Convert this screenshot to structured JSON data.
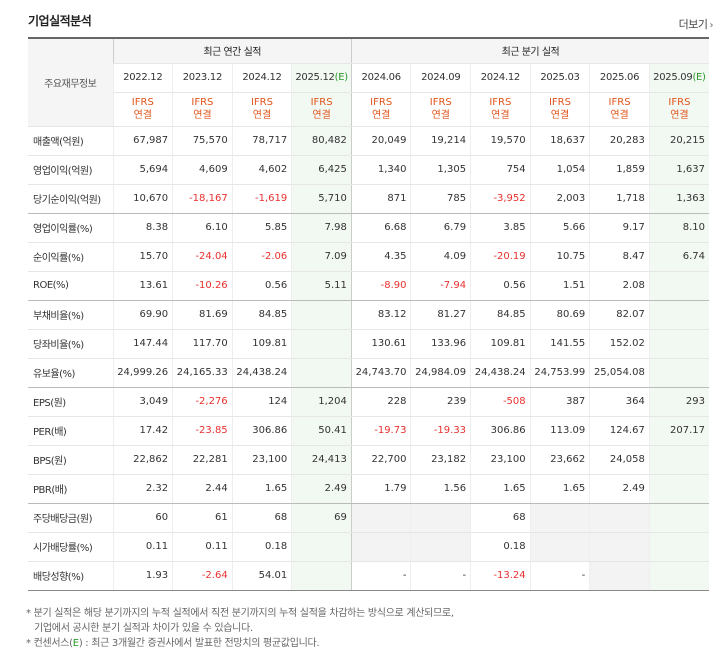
{
  "header": {
    "title": "기업실적분석",
    "more_label": "더보기",
    "more_icon": "chevron-right-icon"
  },
  "table": {
    "corner_label": "주요재무정보",
    "annual_group": "최근 연간 실적",
    "quarter_group": "최근 분기 실적",
    "periods": [
      {
        "label": "2022.12",
        "ifrs1": "IFRS",
        "ifrs2": "연결",
        "estimate": false
      },
      {
        "label": "2023.12",
        "ifrs1": "IFRS",
        "ifrs2": "연결",
        "estimate": false
      },
      {
        "label": "2024.12",
        "ifrs1": "IFRS",
        "ifrs2": "연결",
        "estimate": false
      },
      {
        "label": "2025.12",
        "mark": "(E)",
        "ifrs1": "IFRS",
        "ifrs2": "연결",
        "estimate": true
      },
      {
        "label": "2024.06",
        "ifrs1": "IFRS",
        "ifrs2": "연결",
        "estimate": false
      },
      {
        "label": "2024.09",
        "ifrs1": "IFRS",
        "ifrs2": "연결",
        "estimate": false
      },
      {
        "label": "2024.12",
        "ifrs1": "IFRS",
        "ifrs2": "연결",
        "estimate": false
      },
      {
        "label": "2025.03",
        "ifrs1": "IFRS",
        "ifrs2": "연결",
        "estimate": false
      },
      {
        "label": "2025.06",
        "ifrs1": "IFRS",
        "ifrs2": "연결",
        "estimate": false
      },
      {
        "label": "2025.09",
        "mark": "(E)",
        "ifrs1": "IFRS",
        "ifrs2": "연결",
        "estimate": true
      }
    ],
    "rows": [
      {
        "label": "매출액(억원)",
        "values": [
          "67,987",
          "75,570",
          "78,717",
          "80,482",
          "20,049",
          "19,214",
          "19,570",
          "18,637",
          "20,283",
          "20,215"
        ]
      },
      {
        "label": "영업이익(억원)",
        "values": [
          "5,694",
          "4,609",
          "4,602",
          "6,425",
          "1,340",
          "1,305",
          "754",
          "1,054",
          "1,859",
          "1,637"
        ]
      },
      {
        "label": "당기순이익(억원)",
        "values": [
          "10,670",
          "-18,167",
          "-1,619",
          "5,710",
          "871",
          "785",
          "-3,952",
          "2,003",
          "1,718",
          "1,363"
        ],
        "group_end": true
      },
      {
        "label": "영업이익률(%)",
        "values": [
          "8.38",
          "6.10",
          "5.85",
          "7.98",
          "6.68",
          "6.79",
          "3.85",
          "5.66",
          "9.17",
          "8.10"
        ]
      },
      {
        "label": "순이익률(%)",
        "values": [
          "15.70",
          "-24.04",
          "-2.06",
          "7.09",
          "4.35",
          "4.09",
          "-20.19",
          "10.75",
          "8.47",
          "6.74"
        ]
      },
      {
        "label": "ROE(%)",
        "values": [
          "13.61",
          "-10.26",
          "0.56",
          "5.11",
          "-8.90",
          "-7.94",
          "0.56",
          "1.51",
          "2.08",
          ""
        ],
        "group_end": true
      },
      {
        "label": "부채비율(%)",
        "values": [
          "69.90",
          "81.69",
          "84.85",
          "",
          "83.12",
          "81.27",
          "84.85",
          "80.69",
          "82.07",
          ""
        ]
      },
      {
        "label": "당좌비율(%)",
        "values": [
          "147.44",
          "117.70",
          "109.81",
          "",
          "130.61",
          "133.96",
          "109.81",
          "141.55",
          "152.02",
          ""
        ]
      },
      {
        "label": "유보율(%)",
        "values": [
          "24,999.26",
          "24,165.33",
          "24,438.24",
          "",
          "24,743.70",
          "24,984.09",
          "24,438.24",
          "24,753.99",
          "25,054.08",
          ""
        ],
        "group_end": true
      },
      {
        "label": "EPS(원)",
        "values": [
          "3,049",
          "-2,276",
          "124",
          "1,204",
          "228",
          "239",
          "-508",
          "387",
          "364",
          "293"
        ]
      },
      {
        "label": "PER(배)",
        "values": [
          "17.42",
          "-23.85",
          "306.86",
          "50.41",
          "-19.73",
          "-19.33",
          "306.86",
          "113.09",
          "124.67",
          "207.17"
        ]
      },
      {
        "label": "BPS(원)",
        "values": [
          "22,862",
          "22,281",
          "23,100",
          "24,413",
          "22,700",
          "23,182",
          "23,100",
          "23,662",
          "24,058",
          ""
        ]
      },
      {
        "label": "PBR(배)",
        "values": [
          "2.32",
          "2.44",
          "1.65",
          "2.49",
          "1.79",
          "1.56",
          "1.65",
          "1.65",
          "2.49",
          ""
        ],
        "group_end": true
      },
      {
        "label": "주당배당금(원)",
        "values": [
          "60",
          "61",
          "68",
          "69",
          "",
          "",
          "68",
          "",
          "",
          ""
        ]
      },
      {
        "label": "시가배당률(%)",
        "values": [
          "0.11",
          "0.11",
          "0.18",
          "",
          "",
          "",
          "0.18",
          "",
          "",
          ""
        ]
      },
      {
        "label": "배당성향(%)",
        "values": [
          "1.93",
          "-2.64",
          "54.01",
          "",
          "-",
          "-",
          "-13.24",
          "-",
          "",
          ""
        ],
        "last": true
      }
    ]
  },
  "notes": {
    "line1": "* 분기 실적은 해당 분기까지의 누적 실적에서 직전 분기까지의 누적 실적을 차감하는 방식으로 계산되므로,",
    "line2": "기업에서 공시한 분기 실적과 차이가 있을 수 있습니다.",
    "line3_prefix": "* 컨센서스(",
    "line3_mark": "E",
    "line3_suffix": ") : 최근 3개월간 증권사에서 발표한 전망치의 평균값입니다."
  }
}
